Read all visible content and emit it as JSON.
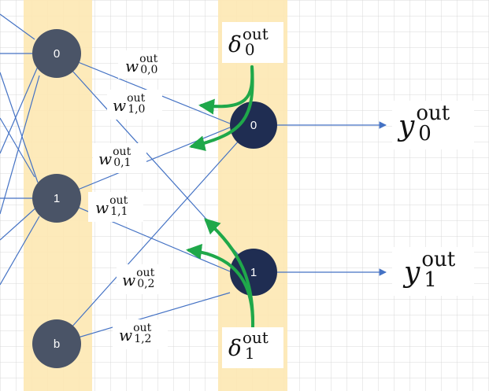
{
  "nodes": {
    "hidden": [
      "0",
      "1",
      "b"
    ],
    "output": [
      "0",
      "1"
    ]
  },
  "weights": {
    "w00": {
      "base": "w",
      "sub": "0,0",
      "sup": "out"
    },
    "w10": {
      "base": "w",
      "sub": "1,0",
      "sup": "out"
    },
    "w01": {
      "base": "w",
      "sub": "0,1",
      "sup": "out"
    },
    "w11": {
      "base": "w",
      "sub": "1,1",
      "sup": "out"
    },
    "w02": {
      "base": "w",
      "sub": "0,2",
      "sup": "out"
    },
    "w12": {
      "base": "w",
      "sub": "1,2",
      "sup": "out"
    }
  },
  "deltas": {
    "d0": {
      "base": "δ",
      "sub": "0",
      "sup": "out"
    },
    "d1": {
      "base": "δ",
      "sub": "1",
      "sup": "out"
    }
  },
  "outputs": {
    "y0": {
      "base": "y",
      "sub": "0",
      "sup": "out"
    },
    "y1": {
      "base": "y",
      "sub": "1",
      "sup": "out"
    }
  },
  "colors": {
    "grid": "#d9d9d9",
    "column_band": "#fde8b2",
    "hidden_node": "#4a5467",
    "output_node": "#1f2d52",
    "edge": "#4472c4",
    "backprop_arrow": "#1fa84a"
  }
}
